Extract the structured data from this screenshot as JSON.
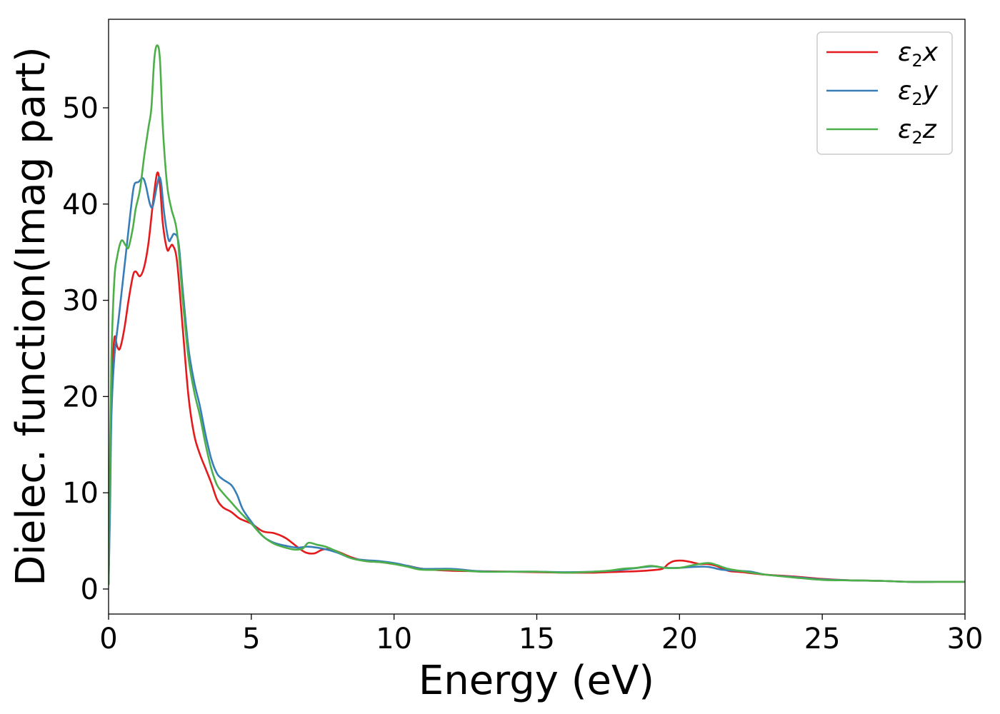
{
  "chart_data": {
    "type": "line",
    "title": "",
    "xlabel": "Energy (eV)",
    "ylabel": "Dielec. function(Imag part)",
    "xlim": [
      0,
      30
    ],
    "ylim": [
      -2.6,
      59.2
    ],
    "xticks": [
      0,
      5,
      10,
      15,
      20,
      25,
      30
    ],
    "yticks": [
      0,
      10,
      20,
      30,
      40,
      50
    ],
    "grid": false,
    "legend": "top-right",
    "series": [
      {
        "name": "ε2x",
        "legend_main": "ε",
        "legend_sub": "2",
        "legend_var": "x",
        "color": "#e41a1c",
        "points": [
          [
            0,
            0.5
          ],
          [
            0.05,
            10
          ],
          [
            0.1,
            20
          ],
          [
            0.2,
            26
          ],
          [
            0.3,
            25.2
          ],
          [
            0.4,
            25
          ],
          [
            0.55,
            27
          ],
          [
            0.7,
            30
          ],
          [
            0.85,
            32.5
          ],
          [
            0.95,
            33
          ],
          [
            1.1,
            32.5
          ],
          [
            1.25,
            33.5
          ],
          [
            1.4,
            36
          ],
          [
            1.55,
            40
          ],
          [
            1.7,
            43.2
          ],
          [
            1.8,
            42
          ],
          [
            1.9,
            38
          ],
          [
            2.05,
            35.3
          ],
          [
            2.15,
            35.5
          ],
          [
            2.25,
            35.7
          ],
          [
            2.4,
            34
          ],
          [
            2.6,
            27
          ],
          [
            2.8,
            20
          ],
          [
            3.0,
            16
          ],
          [
            3.2,
            14
          ],
          [
            3.4,
            12.5
          ],
          [
            3.6,
            11
          ],
          [
            3.8,
            9.3
          ],
          [
            4.0,
            8.5
          ],
          [
            4.3,
            8.0
          ],
          [
            4.6,
            7.3
          ],
          [
            5.0,
            6.8
          ],
          [
            5.4,
            6.0
          ],
          [
            5.8,
            5.8
          ],
          [
            6.2,
            5.3
          ],
          [
            6.6,
            4.4
          ],
          [
            6.9,
            3.8
          ],
          [
            7.2,
            3.7
          ],
          [
            7.5,
            4.1
          ],
          [
            7.8,
            4.1
          ],
          [
            8.1,
            3.8
          ],
          [
            8.5,
            3.3
          ],
          [
            9.0,
            2.9
          ],
          [
            9.5,
            2.8
          ],
          [
            10.0,
            2.6
          ],
          [
            10.5,
            2.4
          ],
          [
            11.0,
            2.1
          ],
          [
            12.0,
            1.9
          ],
          [
            13.0,
            1.85
          ],
          [
            14.0,
            1.8
          ],
          [
            15.0,
            1.75
          ],
          [
            16.0,
            1.7
          ],
          [
            17.0,
            1.7
          ],
          [
            17.5,
            1.75
          ],
          [
            18.0,
            1.8
          ],
          [
            18.5,
            1.85
          ],
          [
            19.0,
            1.95
          ],
          [
            19.4,
            2.1
          ],
          [
            19.6,
            2.6
          ],
          [
            19.8,
            2.9
          ],
          [
            20.1,
            2.95
          ],
          [
            20.4,
            2.8
          ],
          [
            20.7,
            2.6
          ],
          [
            21.0,
            2.6
          ],
          [
            21.3,
            2.4
          ],
          [
            21.7,
            1.9
          ],
          [
            22.2,
            1.75
          ],
          [
            23.0,
            1.5
          ],
          [
            24.0,
            1.3
          ],
          [
            25.0,
            1.05
          ],
          [
            26.0,
            0.9
          ],
          [
            27.0,
            0.85
          ],
          [
            28.0,
            0.75
          ],
          [
            29.0,
            0.75
          ],
          [
            30.0,
            0.75
          ]
        ]
      },
      {
        "name": "ε2y",
        "legend_main": "ε",
        "legend_sub": "2",
        "legend_var": "y",
        "color": "#377eb8",
        "points": [
          [
            0,
            0.5
          ],
          [
            0.05,
            8
          ],
          [
            0.1,
            18
          ],
          [
            0.2,
            24
          ],
          [
            0.35,
            28
          ],
          [
            0.5,
            32
          ],
          [
            0.65,
            36
          ],
          [
            0.8,
            40
          ],
          [
            0.9,
            42
          ],
          [
            1.05,
            42.3
          ],
          [
            1.2,
            42.7
          ],
          [
            1.3,
            42
          ],
          [
            1.45,
            40
          ],
          [
            1.55,
            39.8
          ],
          [
            1.7,
            42
          ],
          [
            1.78,
            42.8
          ],
          [
            1.85,
            42
          ],
          [
            1.95,
            39
          ],
          [
            2.1,
            36.3
          ],
          [
            2.2,
            36.5
          ],
          [
            2.3,
            36.9
          ],
          [
            2.45,
            36
          ],
          [
            2.6,
            31
          ],
          [
            2.8,
            25
          ],
          [
            3.0,
            21.5
          ],
          [
            3.2,
            19
          ],
          [
            3.4,
            16
          ],
          [
            3.6,
            13.5
          ],
          [
            3.8,
            12
          ],
          [
            4.0,
            11.4
          ],
          [
            4.3,
            10.8
          ],
          [
            4.5,
            9.8
          ],
          [
            4.7,
            8.3
          ],
          [
            5.0,
            7.0
          ],
          [
            5.4,
            5.5
          ],
          [
            5.8,
            4.8
          ],
          [
            6.2,
            4.5
          ],
          [
            6.6,
            4.3
          ],
          [
            7.0,
            4.4
          ],
          [
            7.5,
            4.2
          ],
          [
            8.0,
            3.8
          ],
          [
            8.5,
            3.2
          ],
          [
            9.0,
            3.0
          ],
          [
            9.5,
            2.9
          ],
          [
            10.0,
            2.7
          ],
          [
            10.5,
            2.4
          ],
          [
            11.0,
            2.1
          ],
          [
            12.0,
            2.1
          ],
          [
            13.0,
            1.85
          ],
          [
            14.0,
            1.8
          ],
          [
            15.0,
            1.8
          ],
          [
            16.0,
            1.75
          ],
          [
            17.0,
            1.8
          ],
          [
            18.0,
            2.0
          ],
          [
            19.0,
            2.35
          ],
          [
            19.5,
            2.2
          ],
          [
            20.0,
            2.2
          ],
          [
            20.5,
            2.3
          ],
          [
            21.0,
            2.3
          ],
          [
            21.5,
            2.0
          ],
          [
            22.0,
            1.9
          ],
          [
            22.5,
            1.8
          ],
          [
            23.0,
            1.5
          ],
          [
            24.0,
            1.25
          ],
          [
            25.0,
            1.0
          ],
          [
            26.0,
            0.9
          ],
          [
            27.0,
            0.85
          ],
          [
            28.0,
            0.75
          ],
          [
            29.0,
            0.75
          ],
          [
            30.0,
            0.75
          ]
        ]
      },
      {
        "name": "ε2z",
        "legend_main": "ε",
        "legend_sub": "2",
        "legend_var": "z",
        "color": "#4daf4a",
        "points": [
          [
            0,
            0.5
          ],
          [
            0.05,
            14
          ],
          [
            0.1,
            24
          ],
          [
            0.2,
            32
          ],
          [
            0.3,
            34.5
          ],
          [
            0.45,
            36.2
          ],
          [
            0.6,
            35.7
          ],
          [
            0.7,
            35.5
          ],
          [
            0.85,
            37.5
          ],
          [
            0.95,
            39.5
          ],
          [
            1.1,
            41.5
          ],
          [
            1.25,
            45
          ],
          [
            1.4,
            48
          ],
          [
            1.5,
            50
          ],
          [
            1.6,
            55
          ],
          [
            1.7,
            56.5
          ],
          [
            1.8,
            55
          ],
          [
            1.9,
            48
          ],
          [
            2.05,
            42
          ],
          [
            2.2,
            39.5
          ],
          [
            2.4,
            37
          ],
          [
            2.6,
            30
          ],
          [
            2.8,
            24
          ],
          [
            3.0,
            20.5
          ],
          [
            3.2,
            18
          ],
          [
            3.4,
            15
          ],
          [
            3.6,
            12.5
          ],
          [
            3.8,
            10.8
          ],
          [
            4.0,
            10
          ],
          [
            4.3,
            9
          ],
          [
            4.6,
            8
          ],
          [
            5.0,
            6.8
          ],
          [
            5.4,
            5.5
          ],
          [
            5.8,
            4.7
          ],
          [
            6.2,
            4.3
          ],
          [
            6.5,
            4.1
          ],
          [
            6.8,
            4.2
          ],
          [
            7.0,
            4.8
          ],
          [
            7.3,
            4.6
          ],
          [
            7.6,
            4.4
          ],
          [
            8.0,
            3.9
          ],
          [
            8.5,
            3.2
          ],
          [
            9.0,
            2.9
          ],
          [
            9.5,
            2.8
          ],
          [
            10.0,
            2.6
          ],
          [
            10.5,
            2.3
          ],
          [
            11.0,
            2.0
          ],
          [
            12.0,
            2.0
          ],
          [
            13.0,
            1.8
          ],
          [
            14.0,
            1.8
          ],
          [
            15.0,
            1.8
          ],
          [
            16.0,
            1.7
          ],
          [
            17.0,
            1.8
          ],
          [
            17.5,
            1.9
          ],
          [
            18.0,
            2.1
          ],
          [
            18.5,
            2.2
          ],
          [
            19.0,
            2.4
          ],
          [
            19.5,
            2.2
          ],
          [
            20.0,
            2.2
          ],
          [
            20.5,
            2.5
          ],
          [
            21.0,
            2.7
          ],
          [
            21.3,
            2.5
          ],
          [
            21.7,
            2.1
          ],
          [
            22.2,
            1.85
          ],
          [
            23.0,
            1.5
          ],
          [
            24.0,
            1.2
          ],
          [
            25.0,
            0.95
          ],
          [
            26.0,
            0.9
          ],
          [
            27.0,
            0.85
          ],
          [
            28.0,
            0.75
          ],
          [
            29.0,
            0.75
          ],
          [
            30.0,
            0.75
          ]
        ]
      }
    ]
  }
}
